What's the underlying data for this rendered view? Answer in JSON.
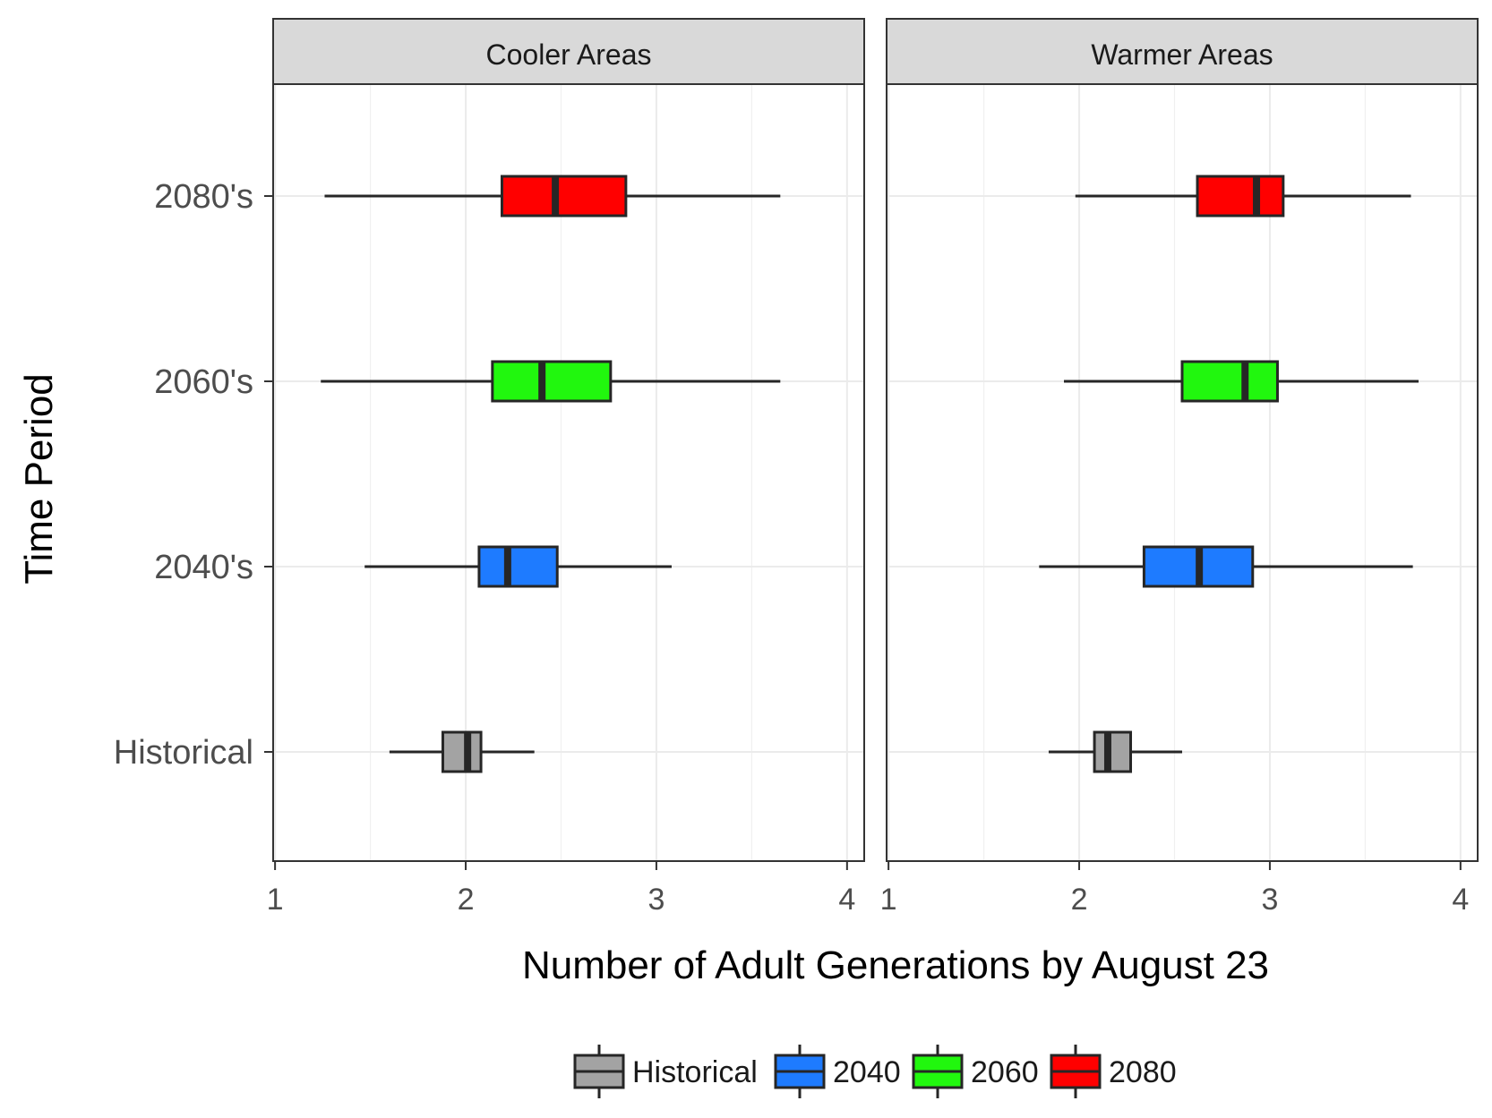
{
  "chart_data": {
    "type": "boxplot",
    "orientation": "horizontal",
    "xlabel": "Number of Adult Generations by August 23",
    "ylabel": "Time Period",
    "xlim": [
      0.99,
      4.09
    ],
    "xticks": [
      1,
      2,
      3,
      4
    ],
    "categories": [
      "Historical",
      "2040's",
      "2060's",
      "2080's"
    ],
    "grid": true,
    "legend": {
      "position": "bottom",
      "items": [
        {
          "label": "Historical",
          "color": "#A3A3A3"
        },
        {
          "label": "2040",
          "color": "#1E7BFF"
        },
        {
          "label": "2060",
          "color": "#21F70E"
        },
        {
          "label": "2080",
          "color": "#FF0000"
        }
      ]
    },
    "panels": [
      {
        "title": "Cooler Areas",
        "boxes": [
          {
            "category": "Historical",
            "series": "Historical",
            "whisker_low": 1.6,
            "q1": 1.88,
            "median": 2.01,
            "q3": 2.08,
            "whisker_high": 2.36
          },
          {
            "category": "2040's",
            "series": "2040",
            "whisker_low": 1.47,
            "q1": 2.07,
            "median": 2.22,
            "q3": 2.48,
            "whisker_high": 3.08
          },
          {
            "category": "2060's",
            "series": "2060",
            "whisker_low": 1.24,
            "q1": 2.14,
            "median": 2.4,
            "q3": 2.76,
            "whisker_high": 3.65
          },
          {
            "category": "2080's",
            "series": "2080",
            "whisker_low": 1.26,
            "q1": 2.19,
            "median": 2.47,
            "q3": 2.84,
            "whisker_high": 3.65
          }
        ]
      },
      {
        "title": "Warmer Areas",
        "boxes": [
          {
            "category": "Historical",
            "series": "Historical",
            "whisker_low": 1.84,
            "q1": 2.08,
            "median": 2.15,
            "q3": 2.27,
            "whisker_high": 2.54
          },
          {
            "category": "2040's",
            "series": "2040",
            "whisker_low": 1.79,
            "q1": 2.34,
            "median": 2.63,
            "q3": 2.91,
            "whisker_high": 3.75
          },
          {
            "category": "2060's",
            "series": "2060",
            "whisker_low": 1.92,
            "q1": 2.54,
            "median": 2.87,
            "q3": 3.04,
            "whisker_high": 3.78
          },
          {
            "category": "2080's",
            "series": "2080",
            "whisker_low": 1.98,
            "q1": 2.62,
            "median": 2.93,
            "q3": 3.07,
            "whisker_high": 3.74
          }
        ]
      }
    ]
  }
}
